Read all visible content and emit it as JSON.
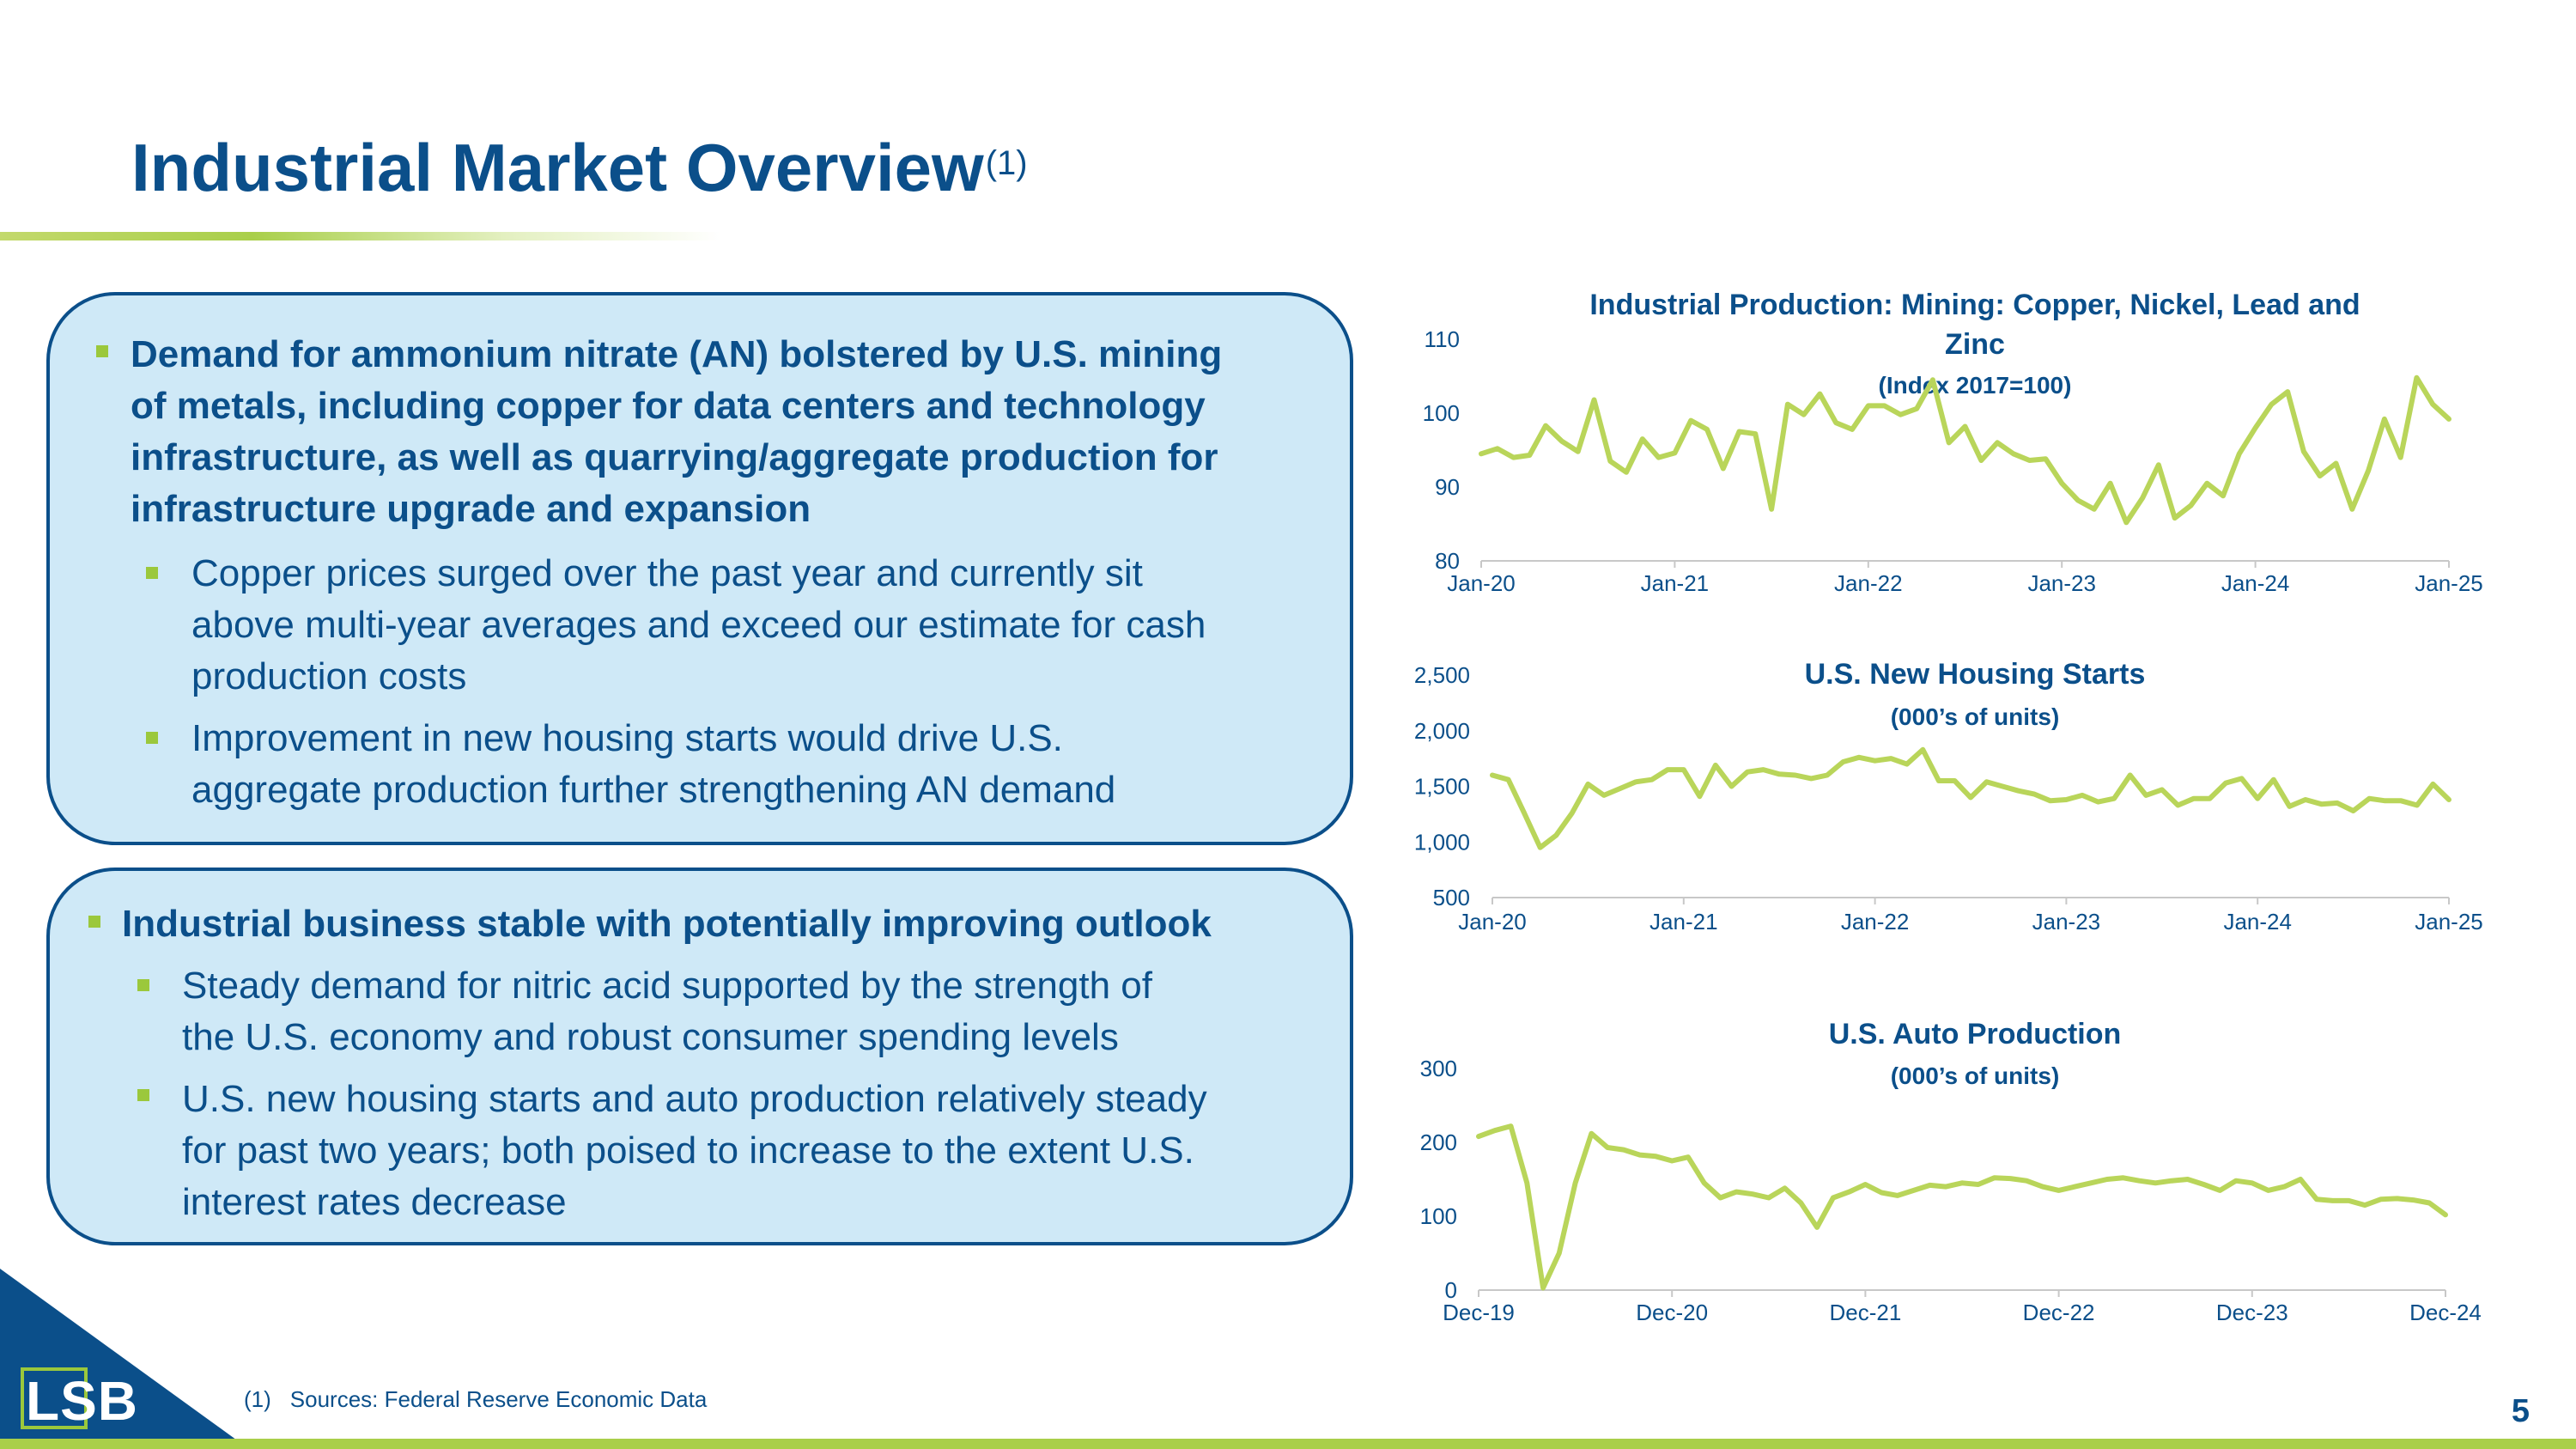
{
  "page": {
    "title": "Industrial Market Overview",
    "title_superscript": "(1)",
    "page_number": "5",
    "footnote_number": "(1)",
    "footnote_text": "Sources: Federal Reserve Economic Data",
    "logo_text": "LSB"
  },
  "colors": {
    "navy": "#0b4f8a",
    "green": "#a9cf4a",
    "box_fill": "#cfe9f7",
    "line": "#b9d55a"
  },
  "box1": {
    "lead": "Demand for ammonium nitrate (AN) bolstered by U.S. mining of metals, including copper for data centers and technology infrastructure, as well as quarrying/aggregate production for infrastructure upgrade and expansion",
    "lead_lines": [
      "Demand for ammonium nitrate (AN) bolstered by U.S. mining",
      "of metals, including copper for data centers and technology",
      "infrastructure, as well as quarrying/aggregate production for",
      "infrastructure upgrade and expansion"
    ],
    "sub1_lines": [
      "Copper prices surged over the past year and currently sit",
      "above multi-year averages and exceed our estimate for cash",
      "production costs"
    ],
    "sub2_lines": [
      "Improvement in new housing starts would drive U.S.",
      "aggregate production further strengthening AN demand"
    ]
  },
  "box2": {
    "lead": "Industrial business stable with potentially improving outlook",
    "sub1_lines": [
      "Steady demand for nitric acid supported by the strength of",
      "the U.S. economy and robust consumer spending levels"
    ],
    "sub2_lines": [
      "U.S. new housing starts and auto production relatively steady",
      "for past two years; both poised to increase to the extent U.S.",
      "interest rates decrease"
    ]
  },
  "chart_data": [
    {
      "type": "line",
      "title": "Industrial Production: Mining: Copper, Nickel, Lead and Zinc",
      "title_lines": [
        "Industrial Production: Mining: Copper, Nickel, Lead and",
        "Zinc"
      ],
      "subtitle": "(Index 2017=100)",
      "ylim": [
        80,
        110
      ],
      "yticks": [
        80,
        90,
        100,
        110
      ],
      "ytick_labels": [
        "80",
        "90",
        "100",
        "110"
      ],
      "xticks": [
        "Jan-20",
        "Jan-21",
        "Jan-22",
        "Jan-23",
        "Jan-24",
        "Jan-25"
      ],
      "x_start": "Jan-20",
      "x_end": "Jan-25",
      "values": [
        94.5,
        95.2,
        94.0,
        94.3,
        98.3,
        96.2,
        94.8,
        101.8,
        93.5,
        92.0,
        96.5,
        94.0,
        94.6,
        99.0,
        97.8,
        92.5,
        97.5,
        97.2,
        87.0,
        101.2,
        99.8,
        102.6,
        98.7,
        97.8,
        101.0,
        101.0,
        99.8,
        100.6,
        104.5,
        96.0,
        98.2,
        93.6,
        96.0,
        94.5,
        93.6,
        93.8,
        90.5,
        88.2,
        87.0,
        90.5,
        85.2,
        88.5,
        93.0,
        85.8,
        87.5,
        90.5,
        88.8,
        94.5,
        98.0,
        101.2,
        102.9,
        94.8,
        91.5,
        93.2,
        87.0,
        92.2,
        99.2,
        94.0,
        104.8,
        101.2,
        99.2
      ]
    },
    {
      "type": "line",
      "title": "U.S. New Housing Starts",
      "subtitle": "(000’s of units)",
      "ylim": [
        500,
        2500
      ],
      "yticks": [
        500,
        1000,
        1500,
        2000,
        2500
      ],
      "ytick_labels": [
        "500",
        "1,000",
        "1,500",
        "2,000",
        "2,500"
      ],
      "xticks": [
        "Jan-20",
        "Jan-21",
        "Jan-22",
        "Jan-23",
        "Jan-24",
        "Jan-25"
      ],
      "x_start": "Jan-20",
      "x_end": "Jan-25",
      "values": [
        1600,
        1560,
        1260,
        950,
        1060,
        1260,
        1520,
        1420,
        1480,
        1540,
        1560,
        1650,
        1650,
        1410,
        1690,
        1500,
        1630,
        1650,
        1610,
        1600,
        1570,
        1600,
        1720,
        1760,
        1730,
        1750,
        1700,
        1830,
        1550,
        1550,
        1400,
        1540,
        1500,
        1460,
        1430,
        1370,
        1380,
        1420,
        1360,
        1390,
        1600,
        1420,
        1470,
        1330,
        1390,
        1390,
        1530,
        1570,
        1390,
        1560,
        1320,
        1380,
        1340,
        1350,
        1280,
        1390,
        1370,
        1370,
        1330,
        1520,
        1380
      ]
    },
    {
      "type": "line",
      "title": "U.S. Auto Production",
      "subtitle": "(000’s of units)",
      "ylim": [
        0,
        300
      ],
      "yticks": [
        0,
        100,
        200,
        300
      ],
      "ytick_labels": [
        "0",
        "100",
        "200",
        "300"
      ],
      "xticks": [
        "Dec-19",
        "Dec-20",
        "Dec-21",
        "Dec-22",
        "Dec-23",
        "Dec-24"
      ],
      "x_start": "Dec-19",
      "x_end": "Dec-24",
      "values": [
        208,
        216,
        222,
        145,
        3,
        50,
        145,
        212,
        193,
        190,
        183,
        181,
        175,
        180,
        145,
        125,
        133,
        130,
        125,
        138,
        118,
        85,
        125,
        133,
        143,
        132,
        128,
        135,
        142,
        140,
        145,
        143,
        152,
        151,
        148,
        140,
        135,
        140,
        145,
        150,
        152,
        148,
        145,
        148,
        150,
        143,
        135,
        148,
        145,
        135,
        140,
        150,
        123,
        121,
        121,
        115,
        123,
        124,
        122,
        118,
        102
      ]
    }
  ]
}
